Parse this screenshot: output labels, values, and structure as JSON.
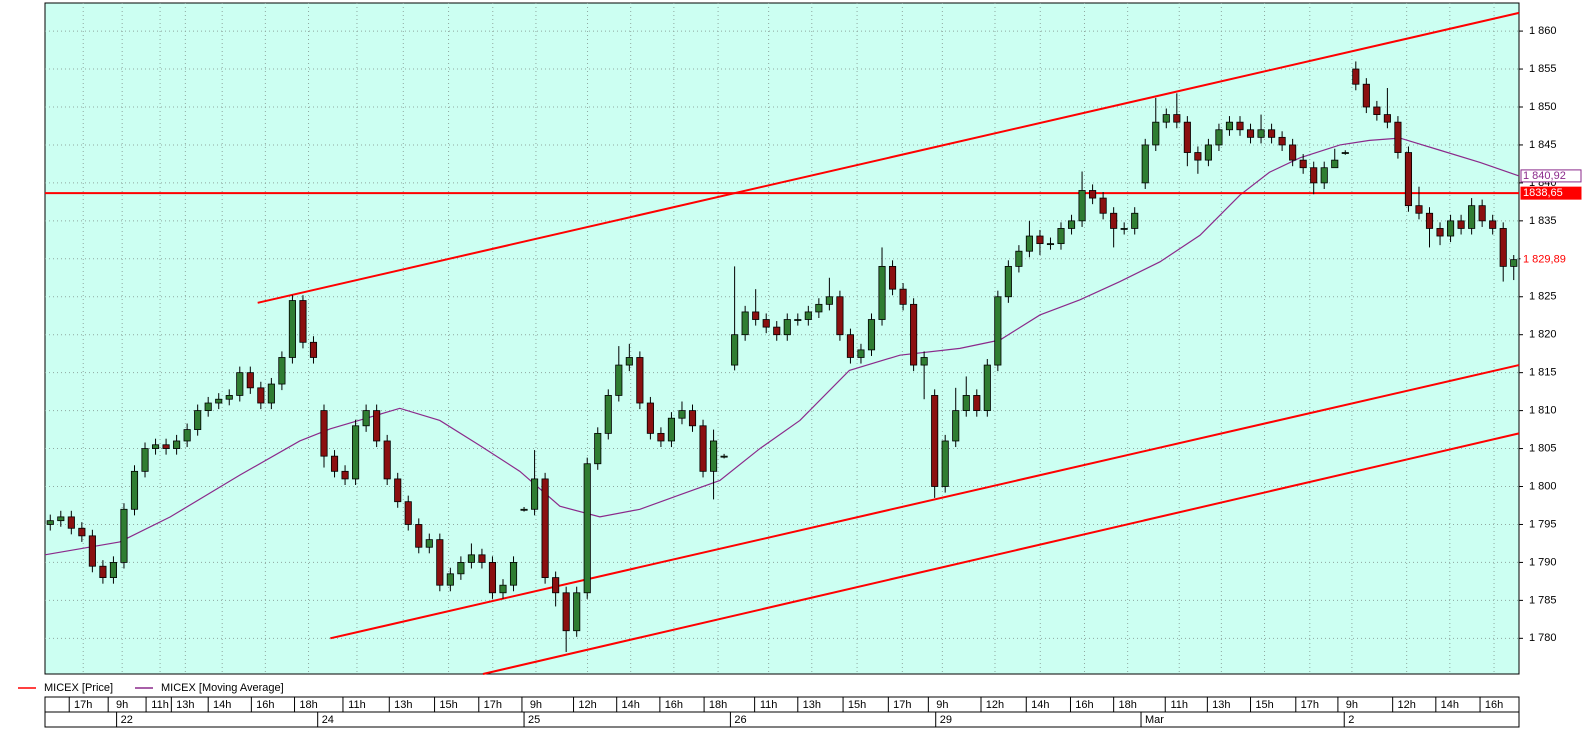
{
  "chart_data": {
    "type": "candlestick",
    "grid": true,
    "background": "#ccfff2",
    "xlim": [
      0,
      140
    ],
    "ylim": [
      1775.3,
      1863.7
    ],
    "yticks": [
      {
        "value": 1780,
        "label": "1 780"
      },
      {
        "value": 1785,
        "label": "1 785"
      },
      {
        "value": 1790,
        "label": "1 790"
      },
      {
        "value": 1795,
        "label": "1 795"
      },
      {
        "value": 1800,
        "label": "1 800"
      },
      {
        "value": 1805,
        "label": "1 805"
      },
      {
        "value": 1810,
        "label": "1 810"
      },
      {
        "value": 1815,
        "label": "1 815"
      },
      {
        "value": 1820,
        "label": "1 820"
      },
      {
        "value": 1825,
        "label": "1 825"
      },
      {
        "value": 1830,
        "label": "1 830"
      },
      {
        "value": 1835,
        "label": "1 835"
      },
      {
        "value": 1840,
        "label": "1 840"
      },
      {
        "value": 1845,
        "label": "1 845"
      },
      {
        "value": 1850,
        "label": "1 850"
      },
      {
        "value": 1855,
        "label": "1 855"
      },
      {
        "value": 1860,
        "label": "1 860"
      }
    ],
    "xticks": [
      {
        "value": 2.3,
        "label": "17h"
      },
      {
        "value": 6.0,
        "label": "9h"
      },
      {
        "value": 9.6,
        "label": "11h"
      },
      {
        "value": 12.0,
        "label": "13h"
      },
      {
        "value": 15.5,
        "label": "14h"
      },
      {
        "value": 19.6,
        "label": "16h"
      },
      {
        "value": 23.7,
        "label": "18h"
      },
      {
        "value": 28.3,
        "label": "11h"
      },
      {
        "value": 32.7,
        "label": "13h"
      },
      {
        "value": 37.0,
        "label": "15h"
      },
      {
        "value": 41.2,
        "label": "17h"
      },
      {
        "value": 45.3,
        "label": "9h"
      },
      {
        "value": 50.2,
        "label": "12h"
      },
      {
        "value": 54.3,
        "label": "14h"
      },
      {
        "value": 58.4,
        "label": "16h"
      },
      {
        "value": 62.6,
        "label": "18h"
      },
      {
        "value": 67.4,
        "label": "11h"
      },
      {
        "value": 71.5,
        "label": "13h"
      },
      {
        "value": 75.8,
        "label": "15h"
      },
      {
        "value": 80.1,
        "label": "17h"
      },
      {
        "value": 83.9,
        "label": "9h"
      },
      {
        "value": 88.9,
        "label": "12h"
      },
      {
        "value": 93.2,
        "label": "14h"
      },
      {
        "value": 97.4,
        "label": "16h"
      },
      {
        "value": 101.5,
        "label": "18h"
      },
      {
        "value": 106.4,
        "label": "11h"
      },
      {
        "value": 110.4,
        "label": "13h"
      },
      {
        "value": 114.5,
        "label": "15h"
      },
      {
        "value": 118.8,
        "label": "17h"
      },
      {
        "value": 122.8,
        "label": "9h"
      },
      {
        "value": 128.0,
        "label": "12h"
      },
      {
        "value": 132.1,
        "label": "14h"
      },
      {
        "value": 136.3,
        "label": "16h"
      }
    ],
    "day_ticks": [
      {
        "value": 6.8,
        "label": "22"
      },
      {
        "value": 25.9,
        "label": "24"
      },
      {
        "value": 45.5,
        "label": "25"
      },
      {
        "value": 65.1,
        "label": "26"
      },
      {
        "value": 84.6,
        "label": "29"
      },
      {
        "value": 104.1,
        "label": "Mar"
      },
      {
        "value": 123.4,
        "label": "2"
      }
    ],
    "series": [
      {
        "name": "MICEX [Price]",
        "color": "#ff0000",
        "up_color": "#2f7d32",
        "down_color": "#8b1010",
        "last_label": "1 829,89",
        "open": [
          1795,
          1795.5,
          1796,
          1794.5,
          1793.5,
          1789.5,
          1788,
          1790,
          1797,
          1802,
          1805,
          1805.5,
          1805,
          1806,
          1807.5,
          1810,
          1811,
          1811.5,
          1812,
          1815,
          1813,
          1811,
          1813.5,
          1817,
          1824.5,
          1819,
          1810,
          1804,
          1802,
          1801,
          1808,
          1810,
          1806,
          1801,
          1798,
          1795,
          1792,
          1793,
          1787,
          1788.5,
          1790,
          1791,
          1790,
          1786,
          1787,
          1797,
          1797,
          1801,
          1788,
          1786,
          1781,
          1786,
          1803,
          1807,
          1812,
          1816,
          1817,
          1811,
          1807,
          1806,
          1809,
          1810,
          1808,
          1802,
          1804,
          1816,
          1820,
          1823,
          1822,
          1821,
          1820,
          1822,
          1822,
          1823,
          1824,
          1825,
          1820,
          1817,
          1818,
          1822,
          1829,
          1826,
          1824,
          1816,
          1812,
          1800,
          1806,
          1810,
          1812,
          1810,
          1816,
          1825,
          1829,
          1831,
          1833,
          1832,
          1832,
          1834,
          1835,
          1839,
          1838,
          1836,
          1834,
          1834,
          1840,
          1845,
          1848,
          1849,
          1848,
          1844,
          1843,
          1845,
          1847,
          1848,
          1847,
          1846,
          1847,
          1846,
          1845,
          1843,
          1842,
          1840,
          1842,
          1844,
          1855,
          1853,
          1850,
          1849,
          1848,
          1844,
          1837,
          1836,
          1834,
          1833,
          1835,
          1834,
          1837,
          1835,
          1834,
          1829
        ],
        "high": [
          1796.3,
          1796.8,
          1796.8,
          1795.3,
          1794.3,
          1790.3,
          1790.8,
          1797.8,
          1802.8,
          1805.8,
          1806.3,
          1806.3,
          1806.8,
          1808.3,
          1810.8,
          1811.8,
          1812.3,
          1812.8,
          1815.8,
          1815.8,
          1813.8,
          1814.3,
          1817.8,
          1825.2,
          1825.2,
          1819.8,
          1810.8,
          1804.8,
          1802.8,
          1808.8,
          1810.8,
          1810.8,
          1806.8,
          1801.8,
          1798.8,
          1795.8,
          1793.8,
          1793.8,
          1789.3,
          1790.8,
          1792.5,
          1791.8,
          1790.8,
          1787.8,
          1790.8,
          1797.3,
          1804.8,
          1801.8,
          1788.8,
          1786.8,
          1786.8,
          1803.8,
          1807.8,
          1812.8,
          1818.5,
          1818.8,
          1817.8,
          1811.8,
          1807.8,
          1809.8,
          1811.2,
          1810.8,
          1808.8,
          1807.5,
          1804.3,
          1829,
          1823.8,
          1826,
          1822.8,
          1821.8,
          1822.8,
          1822.8,
          1823.8,
          1824.8,
          1827.5,
          1825.8,
          1820.8,
          1818.8,
          1822.8,
          1831.5,
          1829.8,
          1826.8,
          1824.8,
          1817.8,
          1812.8,
          1806.8,
          1813,
          1814.5,
          1812.8,
          1816.8,
          1825.8,
          1829.8,
          1831.8,
          1835,
          1833.8,
          1832.8,
          1834.8,
          1835.8,
          1841.5,
          1839.8,
          1838.8,
          1836.8,
          1834.8,
          1836.8,
          1845.8,
          1851.2,
          1849.8,
          1851.8,
          1848.8,
          1844.8,
          1845.8,
          1847.8,
          1848.8,
          1848.8,
          1847.8,
          1849,
          1847.8,
          1846.8,
          1845.8,
          1843.8,
          1842.8,
          1842.8,
          1844.5,
          1844.3,
          1856,
          1853.8,
          1850.8,
          1852.5,
          1848.8,
          1844.8,
          1839.5,
          1836.8,
          1834.8,
          1835.8,
          1835.8,
          1838,
          1837.8,
          1835.8,
          1834.8,
          1830.5
        ],
        "low": [
          1794.2,
          1794.7,
          1793.7,
          1792.7,
          1788.7,
          1787.2,
          1787.2,
          1789.2,
          1796.2,
          1801.2,
          1804.2,
          1804.2,
          1804.2,
          1805.2,
          1806.7,
          1809.2,
          1810.2,
          1810.7,
          1811.2,
          1812.2,
          1810.2,
          1810.2,
          1812.7,
          1816.2,
          1818.2,
          1816.2,
          1802.5,
          1801.2,
          1800.2,
          1800.2,
          1807.2,
          1805.2,
          1800.2,
          1797.2,
          1794.2,
          1791.2,
          1791.2,
          1786.2,
          1786.2,
          1787.7,
          1789.2,
          1789.2,
          1785.2,
          1785.2,
          1786.2,
          1796.7,
          1796.2,
          1787.2,
          1784.2,
          1778.2,
          1780.2,
          1785.2,
          1802.2,
          1806.2,
          1811.2,
          1815.2,
          1810.2,
          1806.2,
          1805.2,
          1805.2,
          1808.2,
          1807.2,
          1801.2,
          1798.3,
          1803.7,
          1815.3,
          1819.2,
          1821.2,
          1820.2,
          1819.2,
          1819.2,
          1821.2,
          1821.2,
          1822.2,
          1823.2,
          1819.2,
          1816.2,
          1816.2,
          1817.2,
          1821.2,
          1825.2,
          1823.2,
          1815.2,
          1811.5,
          1798.5,
          1799.2,
          1805.2,
          1809.2,
          1809.2,
          1809.2,
          1815.2,
          1824.2,
          1828.2,
          1830.2,
          1830.5,
          1831.2,
          1831.2,
          1833.2,
          1834.2,
          1837.2,
          1835.2,
          1831.5,
          1833.2,
          1833.2,
          1839.2,
          1844.2,
          1847.2,
          1847.2,
          1842.2,
          1841.2,
          1842.2,
          1844.2,
          1846.2,
          1846.2,
          1845.2,
          1845.2,
          1845.2,
          1844.2,
          1842.2,
          1841.2,
          1838.5,
          1839.2,
          1842.2,
          1843.7,
          1852.2,
          1849.2,
          1848.2,
          1847.2,
          1843.2,
          1836.2,
          1835.2,
          1831.5,
          1831.8,
          1832.2,
          1833.2,
          1833.2,
          1834.2,
          1833.2,
          1827,
          1827.2
        ],
        "close": [
          1795.5,
          1796,
          1794.5,
          1793.5,
          1789.5,
          1788,
          1790,
          1797,
          1802,
          1805,
          1805.5,
          1805,
          1806,
          1807.5,
          1810,
          1811,
          1811.5,
          1812,
          1815,
          1813,
          1811,
          1813.5,
          1817,
          1824.5,
          1819,
          1817,
          1804,
          1802,
          1801,
          1808,
          1810,
          1806,
          1801,
          1798,
          1795,
          1792,
          1793,
          1787,
          1788.5,
          1790,
          1791,
          1790,
          1786,
          1787,
          1790,
          1797,
          1801,
          1788,
          1786,
          1781,
          1786,
          1803,
          1807,
          1812,
          1816,
          1817,
          1811,
          1807,
          1806,
          1809,
          1810,
          1808,
          1802,
          1806,
          1804,
          1820,
          1823,
          1822,
          1821,
          1820,
          1822,
          1822,
          1823,
          1824,
          1825,
          1820,
          1817,
          1818,
          1822,
          1829,
          1826,
          1824,
          1816,
          1817,
          1800,
          1806,
          1810,
          1812,
          1810,
          1816,
          1825,
          1829,
          1831,
          1833,
          1832,
          1832,
          1834,
          1835,
          1839,
          1838,
          1836,
          1834,
          1834,
          1836,
          1845,
          1848,
          1849,
          1848,
          1844,
          1843,
          1845,
          1847,
          1848,
          1847,
          1846,
          1847,
          1846,
          1845,
          1843,
          1842,
          1840,
          1842,
          1843,
          1844,
          1853,
          1850,
          1849,
          1848,
          1844,
          1837,
          1836,
          1834,
          1833,
          1835,
          1834,
          1837,
          1835,
          1834,
          1829,
          1829.89
        ]
      },
      {
        "name": "MICEX [Moving Average]",
        "color": "#8b2a8b",
        "last_label": "1 840,92",
        "x": [
          0,
          7.1,
          11.9,
          18.5,
          24.2,
          27.1,
          33.7,
          37.5,
          41.3,
          45.1,
          48.9,
          52.7,
          56.5,
          60.3,
          64.1,
          67.9,
          71.7,
          76.4,
          81.2,
          86.9,
          90.7,
          94.5,
          98.3,
          102.1,
          105.9,
          109.7,
          113.5,
          116.3,
          119.2,
          123,
          125.8,
          128.7,
          132.5,
          136.3,
          140
        ],
        "values": [
          1791,
          1792.7,
          1796,
          1801.5,
          1806,
          1807.6,
          1810.3,
          1808.7,
          1805.4,
          1802,
          1797.4,
          1796,
          1797,
          1798.9,
          1800.8,
          1805,
          1808.7,
          1815.3,
          1817.3,
          1818.2,
          1819.3,
          1822.6,
          1824.6,
          1827,
          1829.6,
          1833.1,
          1838.4,
          1841.4,
          1843.3,
          1845,
          1845.6,
          1845.9,
          1844.3,
          1842.7,
          1840.92
        ]
      }
    ],
    "hline": {
      "value": 1838.65,
      "label": "1838,65",
      "color": "#ff0000"
    },
    "trend_lines": [
      {
        "color": "#ff0000",
        "x": [
          20.2,
          140
        ],
        "values": [
          1824.2,
          1862.4
        ]
      },
      {
        "color": "#ff0000",
        "x": [
          27.1,
          140
        ],
        "values": [
          1780,
          1816.0
        ]
      },
      {
        "color": "#ff0000",
        "x": [
          41.6,
          140
        ],
        "values": [
          1775.3,
          1807.0
        ]
      }
    ]
  }
}
